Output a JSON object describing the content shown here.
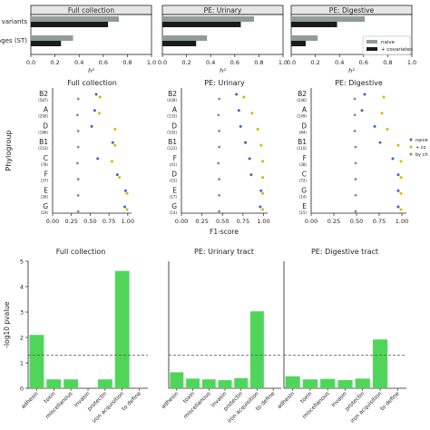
{
  "chart_data": [
    {
      "type": "bar",
      "orientation": "horizontal",
      "panels": [
        {
          "title": "Full collection",
          "naive": [
            0.73,
            0.35
          ],
          "covariates": [
            0.64,
            0.25
          ]
        },
        {
          "title": "PE: Urinary",
          "naive": [
            0.76,
            0.37
          ],
          "covariates": [
            0.65,
            0.28
          ]
        },
        {
          "title": "PE: Digestive",
          "naive": [
            0.61,
            0.22
          ],
          "covariates": [
            0.38,
            0.12
          ]
        }
      ],
      "categories": [
        "variants",
        "ages (ST)"
      ],
      "xlabel": "h²",
      "xlim": [
        0.0,
        1.0
      ],
      "xticks": [
        "0.0",
        "0.2",
        "0.4",
        "0.6",
        "0.8",
        "1.0"
      ],
      "legend": {
        "position": "bottom-right",
        "entries": [
          "naive",
          "+ covariates"
        ]
      },
      "colors": {
        "naive": "#909c97",
        "covariates": "#1b1b1b"
      }
    },
    {
      "type": "scatter",
      "ylabel": "Phylogroup",
      "xlabel": "F1-score",
      "xlim": [
        0.0,
        1.05
      ],
      "xticks": [
        "0.00",
        "0.25",
        "0.50",
        "0.75",
        "1.00"
      ],
      "panels": [
        {
          "title": "Full collection",
          "groups": [
            "B2",
            "A",
            "D",
            "B1",
            "C",
            "F",
            "E",
            "G"
          ],
          "counts": [
            "(587)",
            "(290)",
            "(186)",
            "(153)",
            "(78)",
            "(37)",
            "(26)",
            "(19)"
          ],
          "naive": [
            0.58,
            0.56,
            0.52,
            0.8,
            0.6,
            0.86,
            0.97,
            0.96
          ],
          "covariates": [
            0.63,
            0.62,
            0.83,
            0.83,
            0.79,
            0.89,
            0.99,
            0.99
          ],
          "by_chance": [
            0.34,
            0.33,
            0.34,
            0.34,
            0.33,
            0.34,
            0.34,
            0.34
          ]
        },
        {
          "title": "PE: Urinary",
          "groups": [
            "B2",
            "A",
            "D",
            "B1",
            "F",
            "D",
            "E",
            "G"
          ],
          "counts": [
            "(439)",
            "(133)",
            "(102)",
            "(123)",
            "(41)",
            "(15)",
            "(17)",
            "(14)"
          ],
          "naive": [
            0.67,
            0.7,
            0.72,
            0.78,
            0.83,
            0.85,
            0.97,
            0.96
          ],
          "covariates": [
            0.76,
            0.86,
            0.93,
            0.97,
            0.99,
            0.99,
            0.99,
            0.99
          ],
          "by_chance": [
            0.46,
            0.45,
            0.46,
            0.46,
            0.45,
            0.46,
            0.46,
            0.46
          ]
        },
        {
          "title": "PE: Digestive",
          "groups": [
            "B2",
            "A",
            "D",
            "B1",
            "F",
            "C",
            "G",
            "E"
          ],
          "counts": [
            "(246)",
            "(149)",
            "(84)",
            "(110)",
            "(38)",
            "(72)",
            "(14)",
            "(15)"
          ],
          "naive": [
            0.59,
            0.56,
            0.7,
            0.76,
            0.9,
            0.96,
            0.96,
            0.96
          ],
          "covariates": [
            0.8,
            0.78,
            0.84,
            0.96,
            0.99,
            0.99,
            0.99,
            0.99
          ],
          "by_chance": [
            0.48,
            0.48,
            0.48,
            0.49,
            0.49,
            0.49,
            0.49,
            0.49
          ]
        }
      ],
      "legend": {
        "position": "right",
        "entries": [
          "naive",
          "+ co",
          "by ch"
        ]
      },
      "colors": {
        "naive": "#4a5fc1",
        "covariates": "#e0b400",
        "by_chance": "#8c8c8c"
      }
    },
    {
      "type": "bar",
      "ylabel": "-log10 pvalue",
      "ylim": [
        0,
        5
      ],
      "yticks": [
        "0",
        "1",
        "2",
        "3",
        "4",
        "5"
      ],
      "categories": [
        "adhesin",
        "toxin",
        "miscellanous",
        "invasin",
        "protectin",
        "iron acquisition",
        "to define"
      ],
      "threshold": 1.3,
      "panels": [
        {
          "title": "Full collection",
          "values": [
            2.1,
            0.35,
            0.35,
            0,
            0.35,
            4.62,
            0
          ]
        },
        {
          "title": "PE: Urinary tract",
          "values": [
            0.63,
            0.38,
            0.35,
            0.32,
            0.4,
            3.03,
            0
          ]
        },
        {
          "title": "PE: Digestive tract",
          "values": [
            0.47,
            0.35,
            0.37,
            0.32,
            0.38,
            1.92,
            0
          ]
        }
      ],
      "colors": {
        "bar": "#4fd65a",
        "threshold": "#555555"
      }
    }
  ]
}
